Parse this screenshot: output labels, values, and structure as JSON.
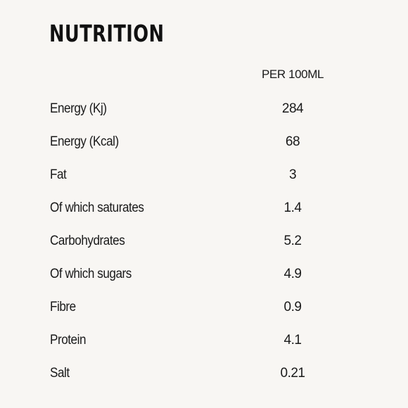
{
  "title": "NUTRITION",
  "column_header": "PER 100ML",
  "rows": [
    {
      "label": "Energy (Kj)",
      "value": "284"
    },
    {
      "label": "Energy (Kcal)",
      "value": "68"
    },
    {
      "label": "Fat",
      "value": "3"
    },
    {
      "label": "Of which saturates",
      "value": "1.4"
    },
    {
      "label": "Carbohydrates",
      "value": "5.2"
    },
    {
      "label": "Of which sugars",
      "value": "4.9"
    },
    {
      "label": "Fibre",
      "value": "0.9"
    },
    {
      "label": "Protein",
      "value": "4.1"
    },
    {
      "label": "Salt",
      "value": "0.21"
    }
  ]
}
